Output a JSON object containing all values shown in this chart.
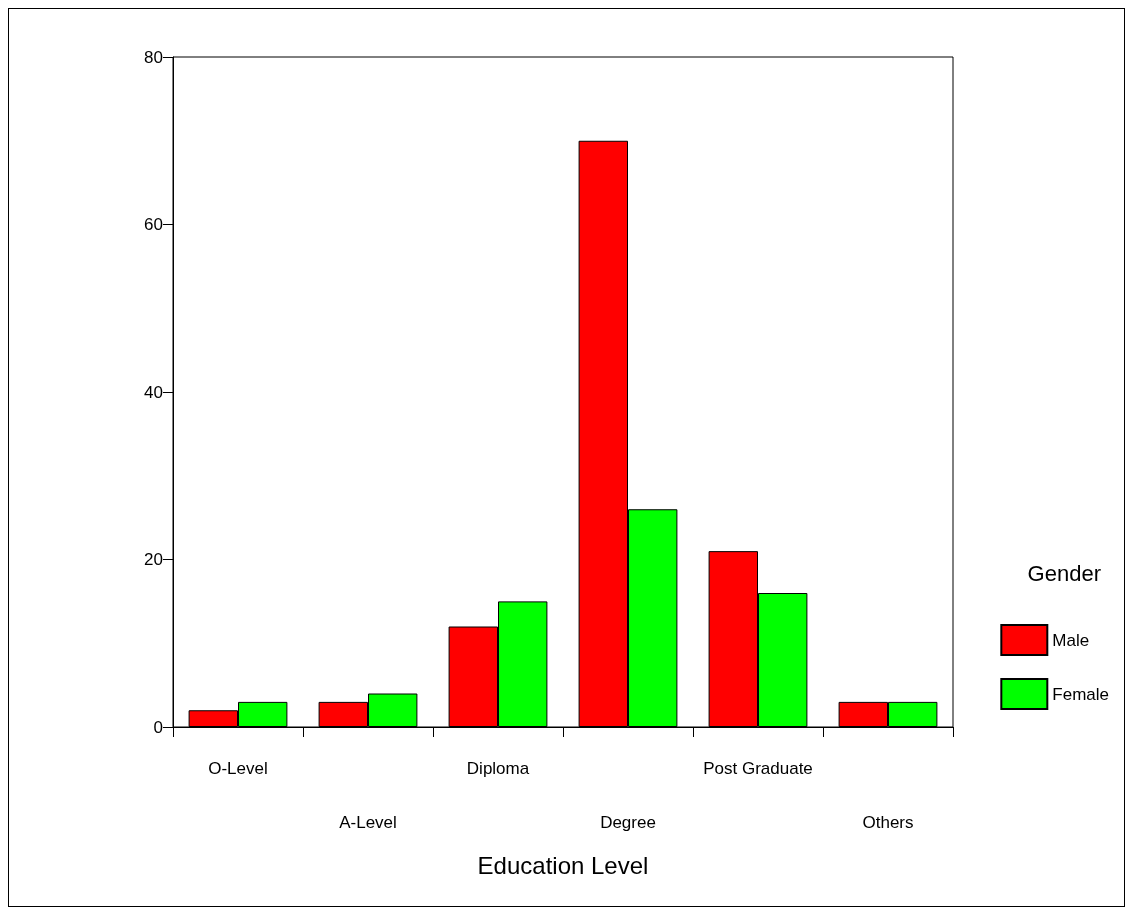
{
  "chart_data": {
    "type": "bar",
    "xlabel": "Education Level",
    "legend_title": "Gender",
    "categories": [
      "O-Level",
      "A-Level",
      "Diploma",
      "Degree",
      "Post Graduate",
      "Others"
    ],
    "series": [
      {
        "name": "Male",
        "color": "#ff0000",
        "values": [
          2,
          3,
          12,
          70,
          21,
          3
        ]
      },
      {
        "name": "Female",
        "color": "#00ff00",
        "values": [
          3,
          4,
          15,
          26,
          16,
          3
        ]
      }
    ],
    "ylim": [
      0,
      80
    ],
    "yticks": [
      0,
      20,
      40,
      60,
      80
    ],
    "grid": false,
    "legend": "right"
  }
}
